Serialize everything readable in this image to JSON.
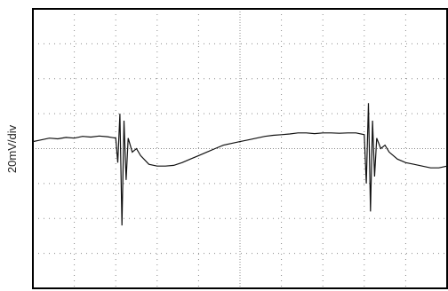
{
  "chart_data": {
    "type": "line",
    "ylabel": "20mV/div",
    "grid": true,
    "x_divisions": 10,
    "y_divisions": 8,
    "xlim": [
      0,
      10
    ],
    "ylim": [
      -4,
      4
    ],
    "colors": {
      "trace": "#111111",
      "grid": "#8a8a8a",
      "frame": "#000000"
    },
    "series": [
      {
        "x": [
          0.0,
          0.2,
          0.4,
          0.6,
          0.8,
          1.0,
          1.2,
          1.4,
          1.6,
          1.8,
          2.0,
          2.05,
          2.1,
          2.15,
          2.2,
          2.25,
          2.3,
          2.4,
          2.5,
          2.6,
          2.8,
          3.0,
          3.2,
          3.4,
          3.6,
          3.8,
          4.0,
          4.2,
          4.4,
          4.6,
          4.8,
          5.0,
          5.2,
          5.4,
          5.6,
          5.8,
          6.0,
          6.2,
          6.4,
          6.6,
          6.8,
          7.0,
          7.2,
          7.4,
          7.6,
          7.8,
          8.0,
          8.05,
          8.1,
          8.15,
          8.2,
          8.25,
          8.3,
          8.4,
          8.5,
          8.6,
          8.8,
          9.0,
          9.2,
          9.4,
          9.6,
          9.8,
          10.0
        ],
        "y": [
          0.2,
          0.25,
          0.3,
          0.28,
          0.32,
          0.3,
          0.35,
          0.33,
          0.36,
          0.34,
          0.3,
          -0.4,
          1.0,
          -2.2,
          0.8,
          -0.9,
          0.3,
          -0.1,
          0.0,
          -0.2,
          -0.45,
          -0.5,
          -0.5,
          -0.48,
          -0.4,
          -0.3,
          -0.2,
          -0.1,
          0.0,
          0.1,
          0.15,
          0.2,
          0.25,
          0.3,
          0.35,
          0.38,
          0.4,
          0.42,
          0.45,
          0.45,
          0.43,
          0.45,
          0.45,
          0.44,
          0.45,
          0.45,
          0.4,
          -1.0,
          1.3,
          -1.8,
          0.8,
          -0.8,
          0.3,
          0.0,
          0.1,
          -0.1,
          -0.3,
          -0.4,
          -0.45,
          -0.5,
          -0.55,
          -0.55,
          -0.5
        ]
      }
    ]
  }
}
